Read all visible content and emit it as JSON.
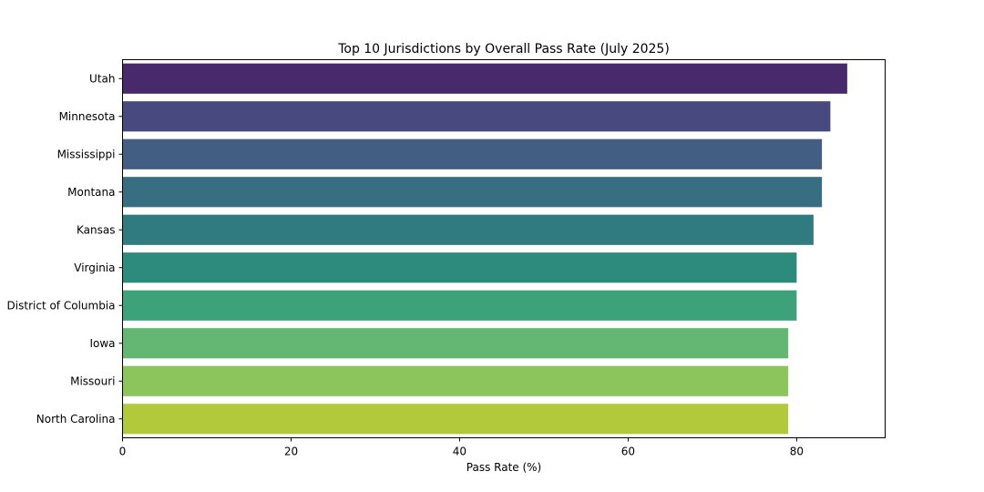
{
  "chart_data": {
    "type": "bar",
    "orientation": "horizontal",
    "title": "Top 10 Jurisdictions by Overall Pass Rate (July 2025)",
    "xlabel": "Pass Rate (%)",
    "ylabel": "",
    "xlim": [
      0,
      90.5
    ],
    "xticks": [
      0,
      20,
      40,
      60,
      80
    ],
    "grid": false,
    "categories": [
      "Utah",
      "Minnesota",
      "Mississippi",
      "Montana",
      "Kansas",
      "Virginia",
      "District of Columbia",
      "Iowa",
      "Missouri",
      "North Carolina"
    ],
    "values": [
      86,
      84,
      83,
      83,
      82,
      80,
      80,
      79,
      79,
      79
    ],
    "colors": [
      "#482a6c",
      "#48497f",
      "#425e83",
      "#386e82",
      "#2f7b80",
      "#2d8b7e",
      "#3da179",
      "#63b772",
      "#8bc55c",
      "#b2c93b"
    ]
  }
}
